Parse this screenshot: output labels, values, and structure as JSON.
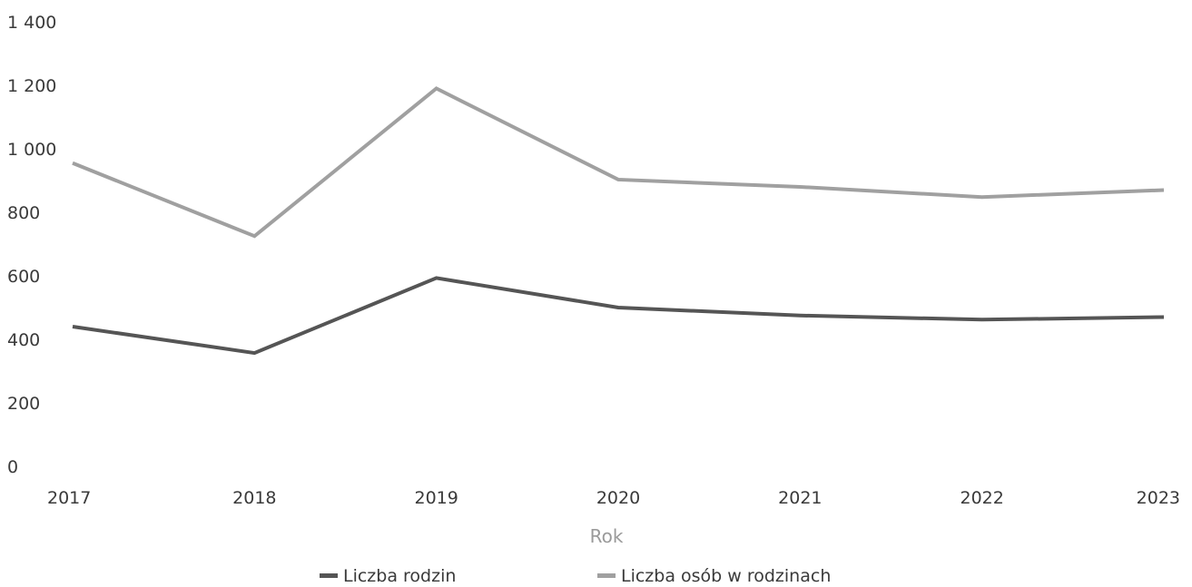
{
  "chart_data": {
    "type": "line",
    "categories": [
      "2017",
      "2018",
      "2019",
      "2020",
      "2021",
      "2022",
      "2023"
    ],
    "series": [
      {
        "name": "Liczba rodzin",
        "color": "#555555",
        "values": [
          440,
          357,
          593,
          500,
          475,
          462,
          470
        ]
      },
      {
        "name": "Liczba osób w rodzinach",
        "color": "#a0a0a0",
        "values": [
          955,
          725,
          1190,
          903,
          880,
          848,
          870
        ]
      }
    ],
    "y_ticks": [
      "0",
      "200",
      "400",
      "600",
      "800",
      "1 000",
      "1 200",
      "1 400"
    ],
    "ylim": [
      0,
      1400
    ],
    "xlabel": "Rok",
    "ylabel": "",
    "title": "",
    "grid": false,
    "legend_position": "bottom-center"
  }
}
